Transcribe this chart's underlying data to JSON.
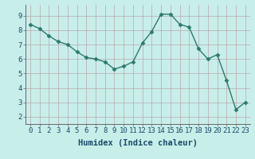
{
  "x": [
    0,
    1,
    2,
    3,
    4,
    5,
    6,
    7,
    8,
    9,
    10,
    11,
    12,
    13,
    14,
    15,
    16,
    17,
    18,
    19,
    20,
    21,
    22,
    23
  ],
  "y": [
    8.4,
    8.1,
    7.6,
    7.2,
    7.0,
    6.5,
    6.1,
    6.0,
    5.8,
    5.3,
    5.5,
    5.8,
    7.1,
    7.9,
    9.1,
    9.1,
    8.4,
    8.2,
    6.7,
    6.0,
    6.3,
    4.5,
    2.5,
    3.0
  ],
  "line_color": "#2d7a6a",
  "marker": "D",
  "marker_size": 2.5,
  "bg_color": "#c8eeea",
  "grid_color": "#b8a8a8",
  "xlabel": "Humidex (Indice chaleur)",
  "xlim": [
    -0.5,
    23.5
  ],
  "ylim": [
    1.5,
    9.75
  ],
  "yticks": [
    2,
    3,
    4,
    5,
    6,
    7,
    8,
    9
  ],
  "xticks": [
    0,
    1,
    2,
    3,
    4,
    5,
    6,
    7,
    8,
    9,
    10,
    11,
    12,
    13,
    14,
    15,
    16,
    17,
    18,
    19,
    20,
    21,
    22,
    23
  ],
  "xlabel_fontsize": 7.5,
  "tick_fontsize": 6.5,
  "line_width": 1.0,
  "label_color": "#1a4a6a"
}
